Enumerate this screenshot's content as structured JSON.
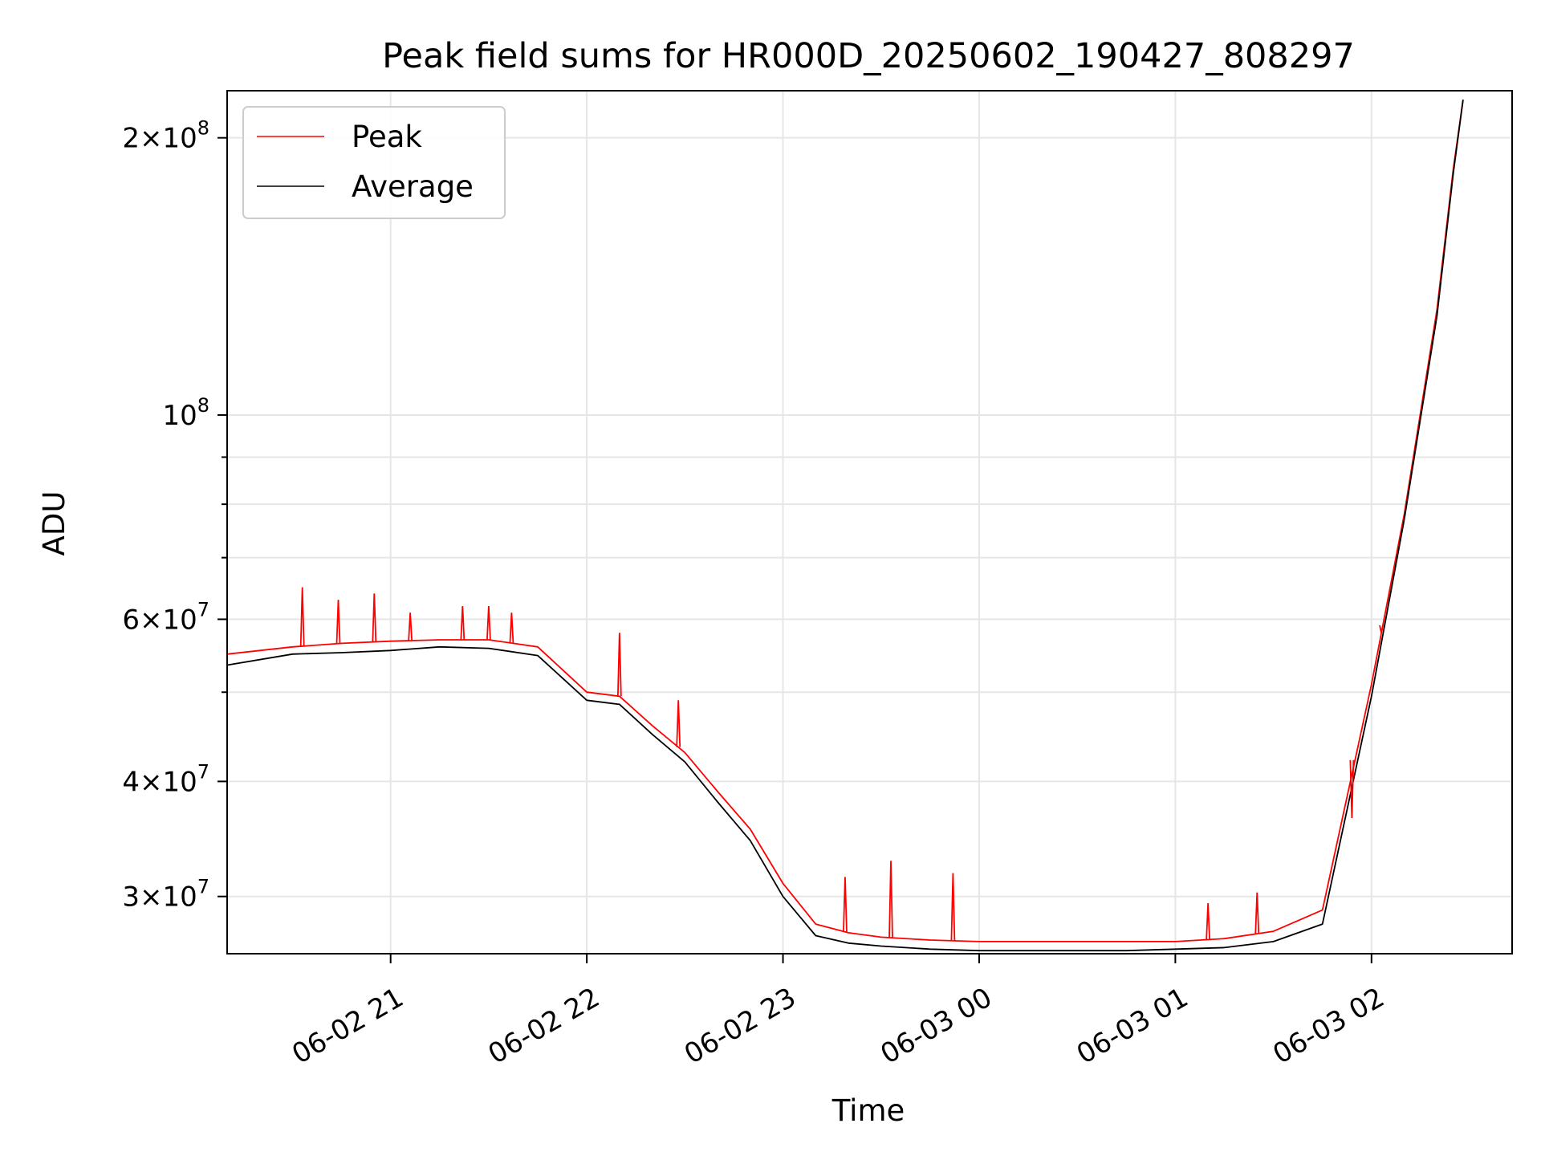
{
  "chart_data": {
    "type": "line",
    "title": "Peak field sums for HR000D_20250602_190427_808297",
    "xlabel": "Time",
    "ylabel": "ADU",
    "yscale": "log",
    "xlim": [
      "2025-06-02 20:10",
      "2025-06-03 02:43"
    ],
    "ylim": [
      26000000,
      225000000
    ],
    "grid": true,
    "legend": {
      "placement": "top-left",
      "entries": [
        "Peak",
        "Average"
      ]
    },
    "x_ticks": [
      {
        "label": "06-02 21",
        "time": "2025-06-02 21:00"
      },
      {
        "label": "06-02 22",
        "time": "2025-06-02 22:00"
      },
      {
        "label": "06-02 23",
        "time": "2025-06-02 23:00"
      },
      {
        "label": "06-03 00",
        "time": "2025-06-03 00:00"
      },
      {
        "label": "06-03 01",
        "time": "2025-06-03 01:00"
      },
      {
        "label": "06-03 02",
        "time": "2025-06-03 02:00"
      }
    ],
    "y_ticks": [
      {
        "mantissa": "3",
        "exponent": "7",
        "value": 30000000
      },
      {
        "mantissa": "4",
        "exponent": "7",
        "value": 40000000
      },
      {
        "mantissa": "6",
        "exponent": "7",
        "value": 60000000
      },
      {
        "mantissa": "",
        "exponent": "8",
        "value": 100000000
      },
      {
        "mantissa": "2",
        "exponent": "8",
        "value": 200000000
      }
    ],
    "y_minor_ticks": [
      50000000,
      70000000,
      80000000,
      90000000
    ],
    "x": [
      "2025-06-02 20:10",
      "2025-06-02 20:30",
      "2025-06-02 20:45",
      "2025-06-02 21:00",
      "2025-06-02 21:15",
      "2025-06-02 21:30",
      "2025-06-02 21:45",
      "2025-06-02 22:00",
      "2025-06-02 22:10",
      "2025-06-02 22:20",
      "2025-06-02 22:30",
      "2025-06-02 22:40",
      "2025-06-02 22:50",
      "2025-06-02 23:00",
      "2025-06-02 23:10",
      "2025-06-02 23:20",
      "2025-06-02 23:30",
      "2025-06-02 23:45",
      "2025-06-03 00:00",
      "2025-06-03 00:15",
      "2025-06-03 00:30",
      "2025-06-03 00:45",
      "2025-06-03 01:00",
      "2025-06-03 01:15",
      "2025-06-03 01:30",
      "2025-06-03 01:45",
      "2025-06-03 02:00",
      "2025-06-03 02:10",
      "2025-06-03 02:20",
      "2025-06-03 02:25",
      "2025-06-03 02:28"
    ],
    "series": [
      {
        "name": "Peak",
        "color": "#ff0000",
        "values": [
          55000000,
          56000000,
          56500000,
          56800000,
          57000000,
          57000000,
          56000000,
          50000000,
          49500000,
          46000000,
          43000000,
          39000000,
          35500000,
          31000000,
          28000000,
          27400000,
          27100000,
          26900000,
          26800000,
          26800000,
          26800000,
          26800000,
          26800000,
          27000000,
          27500000,
          29000000,
          51000000,
          78000000,
          130000000,
          185000000,
          220000000
        ]
      },
      {
        "name": "Average",
        "color": "#000000",
        "values": [
          53500000,
          55000000,
          55200000,
          55500000,
          56000000,
          55800000,
          54800000,
          49000000,
          48500000,
          45000000,
          42000000,
          38000000,
          34500000,
          30000000,
          27200000,
          26700000,
          26500000,
          26300000,
          26200000,
          26200000,
          26200000,
          26200000,
          26300000,
          26400000,
          26800000,
          28000000,
          49500000,
          77000000,
          128000000,
          183000000,
          220000000
        ]
      }
    ],
    "spikes": [
      {
        "time": "2025-06-02 20:33",
        "value": 65000000
      },
      {
        "time": "2025-06-02 20:44",
        "value": 63000000
      },
      {
        "time": "2025-06-02 20:55",
        "value": 64000000
      },
      {
        "time": "2025-06-02 21:06",
        "value": 61000000
      },
      {
        "time": "2025-06-02 21:22",
        "value": 62000000
      },
      {
        "time": "2025-06-02 21:30",
        "value": 62000000
      },
      {
        "time": "2025-06-02 21:37",
        "value": 61000000
      },
      {
        "time": "2025-06-02 22:10",
        "value": 58000000
      },
      {
        "time": "2025-06-02 22:28",
        "value": 49000000
      },
      {
        "time": "2025-06-02 23:19",
        "value": 31500000
      },
      {
        "time": "2025-06-02 23:33",
        "value": 32800000
      },
      {
        "time": "2025-06-02 23:52",
        "value": 31800000
      },
      {
        "time": "2025-06-03 01:10",
        "value": 29500000
      },
      {
        "time": "2025-06-03 01:25",
        "value": 30300000
      },
      {
        "time": "2025-06-03 01:54",
        "value": 36500000
      },
      {
        "time": "2025-06-03 02:03",
        "value": 58000000
      }
    ]
  }
}
